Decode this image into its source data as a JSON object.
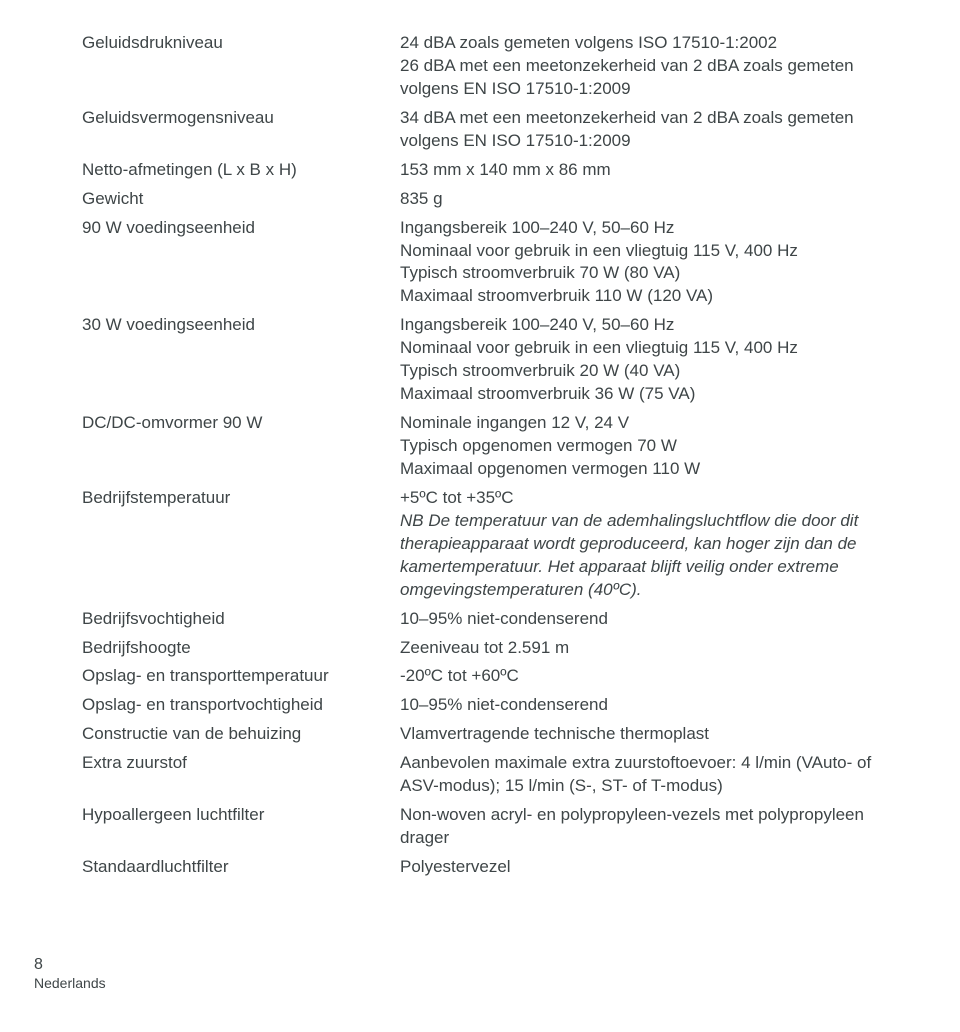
{
  "rows": [
    {
      "label": "Geluidsdrukniveau",
      "value": "24 dBA zoals gemeten volgens ISO 17510-1:2002\n26 dBA met een meetonzekerheid van 2 dBA zoals gemeten volgens EN ISO 17510-1:2009"
    },
    {
      "label": "Geluidsvermogensniveau",
      "value": "34 dBA met een meetonzekerheid van 2 dBA zoals gemeten volgens EN ISO 17510-1:2009"
    },
    {
      "label": "Netto-afmetingen (L x B x H)",
      "value": "153 mm x 140 mm x 86 mm"
    },
    {
      "label": "Gewicht",
      "value": "835 g"
    },
    {
      "label": "90 W voedingseenheid",
      "value": "Ingangsbereik 100–240 V, 50–60 Hz\nNominaal voor gebruik in een vliegtuig 115 V, 400 Hz\nTypisch stroomverbruik 70 W (80 VA)\nMaximaal stroomverbruik 110 W (120 VA)"
    },
    {
      "label": "30 W voedingseenheid",
      "value": "Ingangsbereik 100–240 V, 50–60 Hz\nNominaal voor gebruik in een vliegtuig 115 V, 400 Hz\nTypisch stroomverbruik 20 W (40 VA)\nMaximaal stroomverbruik 36 W (75 VA)"
    },
    {
      "label": "DC/DC-omvormer 90 W",
      "value": "Nominale ingangen 12 V, 24 V\nTypisch opgenomen vermogen 70 W\nMaximaal opgenomen vermogen 110 W"
    },
    {
      "label": "Bedrijfstemperatuur",
      "value": "+5ºC tot +35ºC",
      "note": "NB De temperatuur van de ademhalingsluchtflow die door dit therapieapparaat wordt geproduceerd, kan hoger zijn dan de kamertemperatuur. Het apparaat blijft veilig onder extreme omgevingstemperaturen (40ºC)."
    },
    {
      "label": "Bedrijfsvochtigheid",
      "value": "10–95% niet-condenserend"
    },
    {
      "label": "Bedrijfshoogte",
      "value": "Zeeniveau tot 2.591 m"
    },
    {
      "label": "Opslag- en transporttemperatuur",
      "value": "-20ºC tot +60ºC"
    },
    {
      "label": "Opslag- en transportvochtigheid",
      "value": "10–95% niet-condenserend"
    },
    {
      "label": "Constructie van de behuizing",
      "value": "Vlamvertragende technische thermoplast"
    },
    {
      "label": "Extra zuurstof",
      "value": "Aanbevolen maximale extra zuurstoftoevoer: 4 l/min (VAuto- of ASV-modus); 15 l/min (S-, ST- of T-modus)"
    },
    {
      "label": "Hypoallergeen luchtfilter",
      "value": "Non-woven acryl- en polypropyleen-vezels met polypropyleen drager"
    },
    {
      "label": "Standaardluchtfilter",
      "value": "Polyestervezel"
    }
  ],
  "footer": {
    "page": "8",
    "lang": "Nederlands"
  }
}
